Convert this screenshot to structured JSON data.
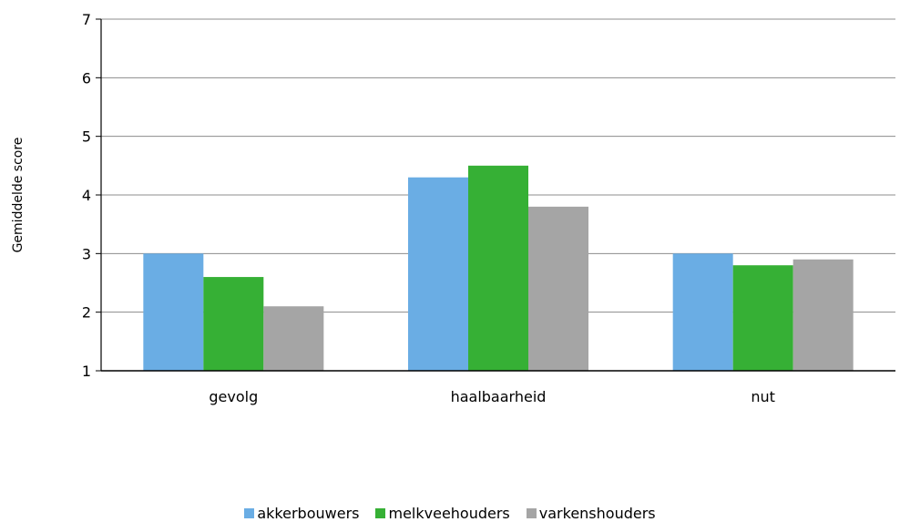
{
  "chart_data": {
    "type": "bar",
    "title": "",
    "xlabel": "",
    "ylabel": "Gemiddelde score",
    "ylim": [
      1,
      7
    ],
    "yticks": [
      1,
      2,
      3,
      4,
      5,
      6,
      7
    ],
    "grid": true,
    "legend_position": "bottom",
    "categories": [
      "gevolg",
      "haalbaarheid",
      "nut"
    ],
    "series": [
      {
        "name": "akkerbouwers",
        "color": "#6aade4",
        "values": [
          3.0,
          4.3,
          3.0
        ]
      },
      {
        "name": "melkveehouders",
        "color": "#36b035",
        "values": [
          2.6,
          4.5,
          2.8
        ]
      },
      {
        "name": "varkenshouders",
        "color": "#a5a5a5",
        "values": [
          2.1,
          3.8,
          2.9
        ]
      }
    ]
  }
}
